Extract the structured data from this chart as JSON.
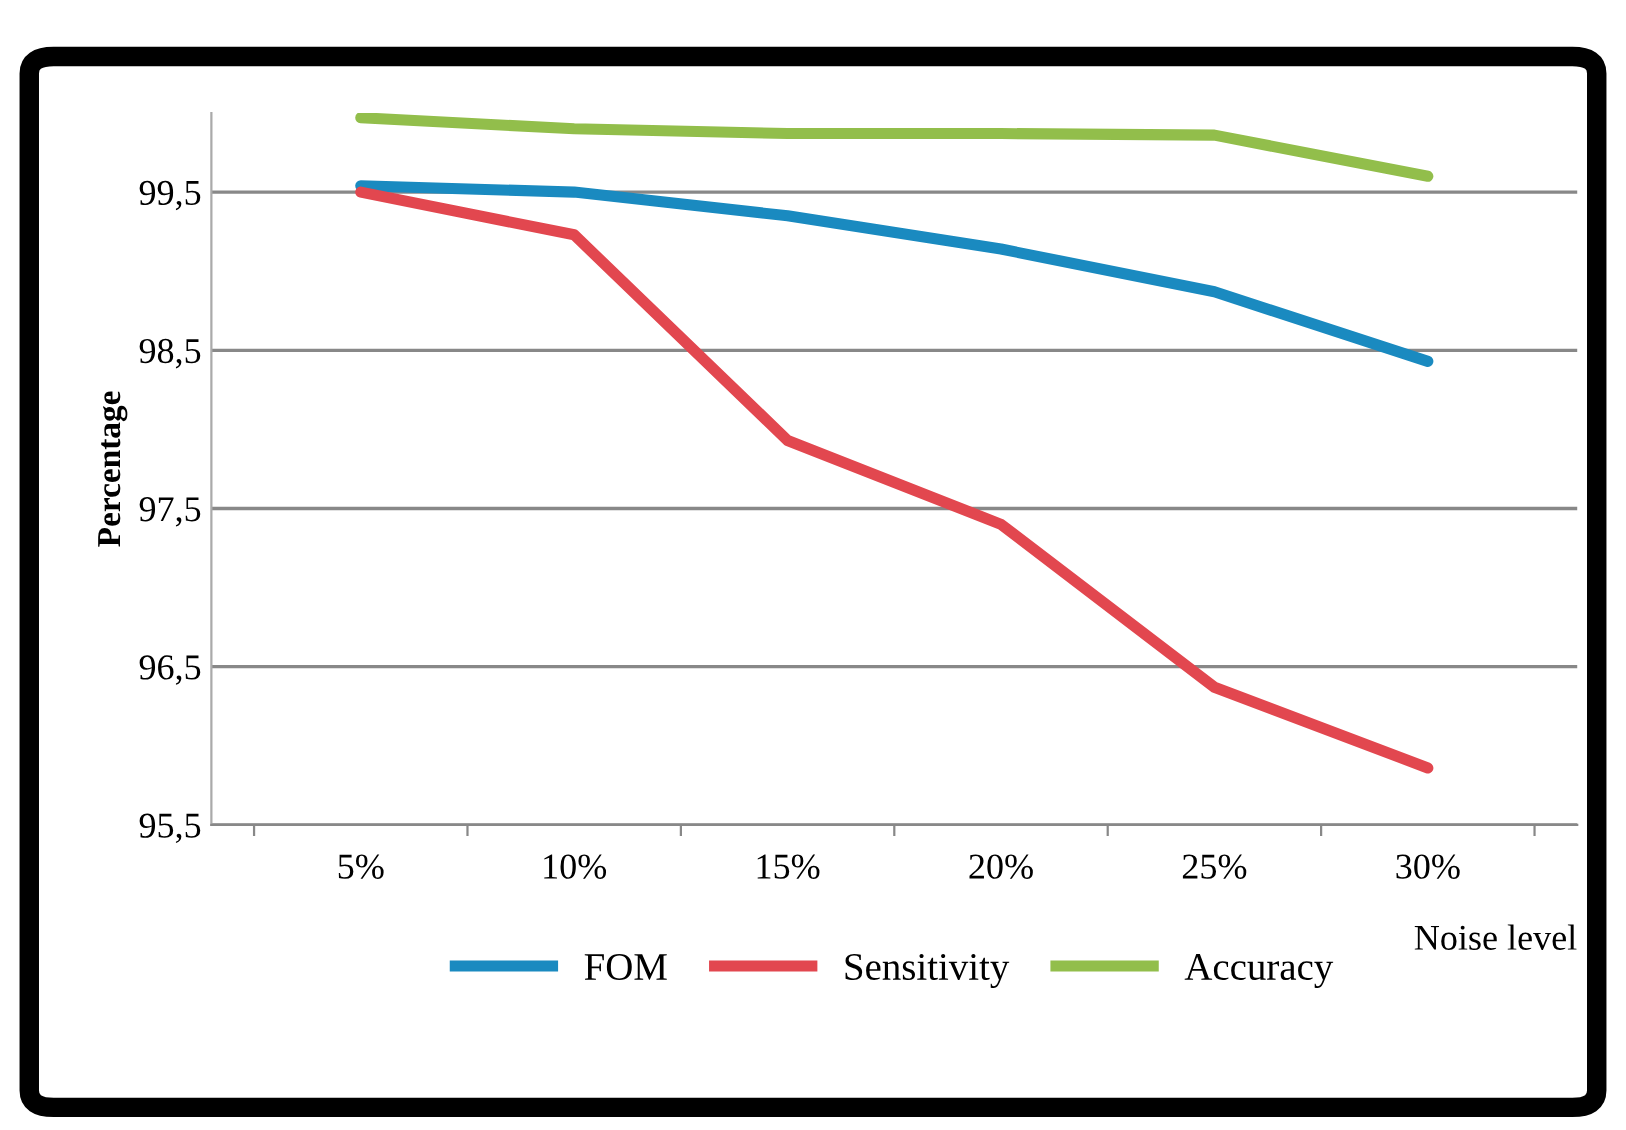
{
  "chart_data": {
    "type": "line",
    "categories": [
      "5%",
      "10%",
      "15%",
      "20%",
      "25%",
      "30%"
    ],
    "xlabel": "Noise level",
    "ylabel": "Percentage",
    "ylim": [
      95.5,
      100
    ],
    "yticks": [
      {
        "value": 95.5,
        "label": "95,5"
      },
      {
        "value": 96.5,
        "label": "96,5"
      },
      {
        "value": 97.5,
        "label": "97,5"
      },
      {
        "value": 98.5,
        "label": "98,5"
      },
      {
        "value": 99.5,
        "label": "99,5"
      }
    ],
    "grid": "y",
    "legend": "bottom",
    "marker": "none",
    "line_style": "solid",
    "series": [
      {
        "name": "FOM",
        "color": "#1a8ac0",
        "values": [
          99.54,
          99.5,
          99.35,
          99.14,
          98.87,
          98.43
        ]
      },
      {
        "name": "Sensitivity",
        "color": "#e2474f",
        "values": [
          99.5,
          99.23,
          97.93,
          97.4,
          96.37,
          95.86
        ]
      },
      {
        "name": "Accuracy",
        "color": "#92be4b",
        "values": [
          99.97,
          99.9,
          99.87,
          99.87,
          99.86,
          99.6
        ]
      }
    ]
  }
}
